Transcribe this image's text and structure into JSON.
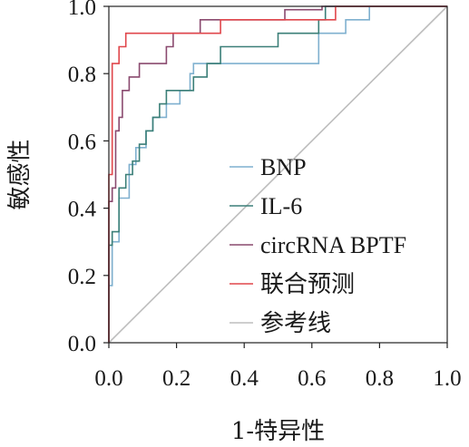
{
  "chart_data": {
    "type": "line",
    "xlabel": "1-特异性",
    "ylabel": "敏感性",
    "xlim": [
      0,
      1
    ],
    "ylim": [
      0,
      1
    ],
    "x_ticks": [
      "0.0",
      "0.2",
      "0.4",
      "0.6",
      "0.8",
      "1.0"
    ],
    "y_ticks": [
      "0.0",
      "0.2",
      "0.4",
      "0.6",
      "0.8",
      "1.0"
    ],
    "grid": false,
    "legend_position": "right",
    "series": [
      {
        "name": "BNP",
        "color": "#7fb0cf",
        "points": [
          [
            0,
            0
          ],
          [
            0,
            0.17
          ],
          [
            0.01,
            0.17
          ],
          [
            0.01,
            0.3
          ],
          [
            0.03,
            0.3
          ],
          [
            0.03,
            0.43
          ],
          [
            0.06,
            0.43
          ],
          [
            0.06,
            0.53
          ],
          [
            0.08,
            0.53
          ],
          [
            0.08,
            0.58
          ],
          [
            0.11,
            0.58
          ],
          [
            0.11,
            0.63
          ],
          [
            0.13,
            0.63
          ],
          [
            0.13,
            0.67
          ],
          [
            0.17,
            0.67
          ],
          [
            0.17,
            0.71
          ],
          [
            0.21,
            0.71
          ],
          [
            0.21,
            0.75
          ],
          [
            0.24,
            0.75
          ],
          [
            0.24,
            0.8
          ],
          [
            0.25,
            0.8
          ],
          [
            0.25,
            0.83
          ],
          [
            0.31,
            0.83
          ],
          [
            0.31,
            0.83
          ],
          [
            0.62,
            0.83
          ],
          [
            0.62,
            0.92
          ],
          [
            0.7,
            0.92
          ],
          [
            0.7,
            0.96
          ],
          [
            0.77,
            0.96
          ],
          [
            0.77,
            1.0
          ],
          [
            1.0,
            1.0
          ]
        ]
      },
      {
        "name": "IL-6",
        "color": "#3b7f78",
        "points": [
          [
            0,
            0
          ],
          [
            0,
            0.29
          ],
          [
            0.01,
            0.29
          ],
          [
            0.01,
            0.33
          ],
          [
            0.03,
            0.33
          ],
          [
            0.03,
            0.46
          ],
          [
            0.05,
            0.46
          ],
          [
            0.05,
            0.5
          ],
          [
            0.07,
            0.5
          ],
          [
            0.07,
            0.54
          ],
          [
            0.09,
            0.54
          ],
          [
            0.09,
            0.59
          ],
          [
            0.11,
            0.59
          ],
          [
            0.11,
            0.63
          ],
          [
            0.13,
            0.63
          ],
          [
            0.13,
            0.67
          ],
          [
            0.15,
            0.67
          ],
          [
            0.15,
            0.71
          ],
          [
            0.17,
            0.71
          ],
          [
            0.17,
            0.75
          ],
          [
            0.25,
            0.75
          ],
          [
            0.25,
            0.79
          ],
          [
            0.29,
            0.79
          ],
          [
            0.29,
            0.83
          ],
          [
            0.33,
            0.83
          ],
          [
            0.33,
            0.88
          ],
          [
            0.5,
            0.88
          ],
          [
            0.5,
            0.92
          ],
          [
            0.62,
            0.92
          ],
          [
            0.62,
            0.96
          ],
          [
            0.64,
            0.96
          ],
          [
            0.64,
            1.0
          ],
          [
            1.0,
            1.0
          ]
        ]
      },
      {
        "name": "circRNA BPTF",
        "color": "#8a4a6f",
        "points": [
          [
            0,
            0
          ],
          [
            0,
            0.42
          ],
          [
            0.01,
            0.42
          ],
          [
            0.01,
            0.46
          ],
          [
            0.02,
            0.46
          ],
          [
            0.02,
            0.63
          ],
          [
            0.03,
            0.63
          ],
          [
            0.03,
            0.67
          ],
          [
            0.04,
            0.67
          ],
          [
            0.04,
            0.75
          ],
          [
            0.06,
            0.75
          ],
          [
            0.06,
            0.79
          ],
          [
            0.09,
            0.79
          ],
          [
            0.09,
            0.83
          ],
          [
            0.17,
            0.83
          ],
          [
            0.17,
            0.88
          ],
          [
            0.19,
            0.88
          ],
          [
            0.19,
            0.92
          ],
          [
            0.27,
            0.92
          ],
          [
            0.27,
            0.96
          ],
          [
            0.52,
            0.96
          ],
          [
            0.52,
            0.99
          ],
          [
            0.63,
            0.99
          ],
          [
            0.63,
            1.0
          ],
          [
            1.0,
            1.0
          ]
        ]
      },
      {
        "name": "联合预测",
        "color": "#e0474c",
        "points": [
          [
            0,
            0
          ],
          [
            0,
            0.5
          ],
          [
            0.01,
            0.5
          ],
          [
            0.01,
            0.83
          ],
          [
            0.03,
            0.83
          ],
          [
            0.03,
            0.88
          ],
          [
            0.05,
            0.88
          ],
          [
            0.05,
            0.92
          ],
          [
            0.33,
            0.92
          ],
          [
            0.33,
            0.96
          ],
          [
            0.67,
            0.96
          ],
          [
            0.67,
            1.0
          ],
          [
            1.0,
            1.0
          ]
        ]
      },
      {
        "name": "参考线",
        "color": "#bdbdbd",
        "points": [
          [
            0,
            0
          ],
          [
            1,
            1
          ]
        ]
      }
    ]
  }
}
